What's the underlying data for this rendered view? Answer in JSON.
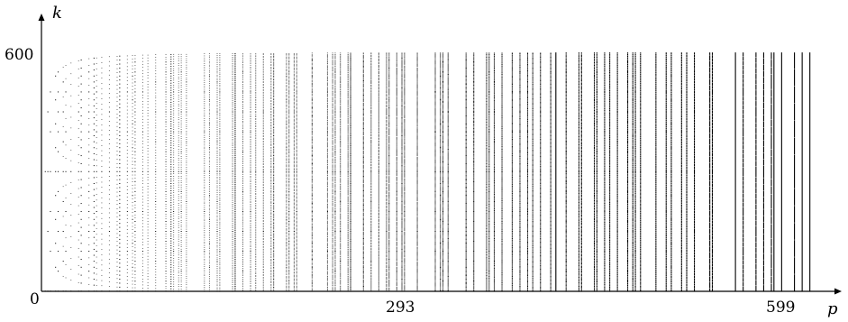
{
  "chart_data": {
    "type": "line",
    "xlabel": "p",
    "ylabel": "k",
    "xlim": [
      0,
      640
    ],
    "ylim": [
      0,
      600
    ],
    "y_ticks": [
      {
        "value": 0,
        "label": "0"
      },
      {
        "value": 600,
        "label": "600"
      }
    ],
    "x_ticks": [
      {
        "value": 293,
        "label": "293"
      },
      {
        "value": 599,
        "label": "599"
      }
    ],
    "grid": false,
    "legend": "none"
  },
  "colors": {
    "ink": "#000000",
    "background": "#ffffff"
  }
}
